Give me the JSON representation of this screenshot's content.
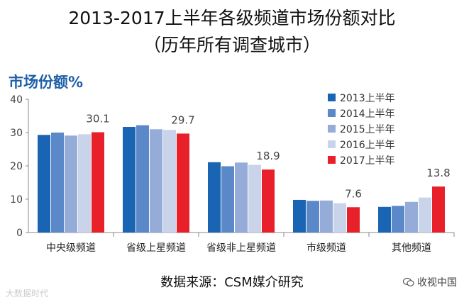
{
  "header": {
    "title_line1": "2013-2017上半年各级频道市场份额对比",
    "title_line2": "（历年所有调查城市）"
  },
  "chart_data": {
    "type": "bar",
    "ylabel": "市场份额%",
    "ylim": [
      0,
      40
    ],
    "yticks": [
      0,
      10,
      20,
      30,
      40
    ],
    "categories": [
      "中央级频道",
      "省级上星频道",
      "省级非上星频道",
      "市级频道",
      "其他频道"
    ],
    "series": [
      {
        "name": "2013上半年",
        "color": "#1a64b4",
        "values": [
          29.3,
          31.7,
          21.1,
          9.8,
          7.7
        ]
      },
      {
        "name": "2014上半年",
        "color": "#5b88c8",
        "values": [
          30.0,
          32.2,
          19.9,
          9.5,
          8.0
        ]
      },
      {
        "name": "2015上半年",
        "color": "#95acd8",
        "values": [
          29.1,
          31.0,
          21.0,
          9.6,
          9.2
        ]
      },
      {
        "name": "2016上半年",
        "color": "#c9d4ea",
        "values": [
          29.5,
          30.8,
          20.3,
          8.8,
          10.5
        ]
      },
      {
        "name": "2017上半年",
        "color": "#e8202a",
        "values": [
          30.1,
          29.7,
          18.9,
          7.6,
          13.8
        ]
      }
    ],
    "data_labels": [
      "30.1",
      "29.7",
      "18.9",
      "7.6",
      "13.8"
    ],
    "legend_position": "right",
    "grid": false
  },
  "footer": {
    "source": "数据来源：CSM媒介研究",
    "watermark_left": "大数据时代",
    "watermark_right": "收视中国"
  }
}
